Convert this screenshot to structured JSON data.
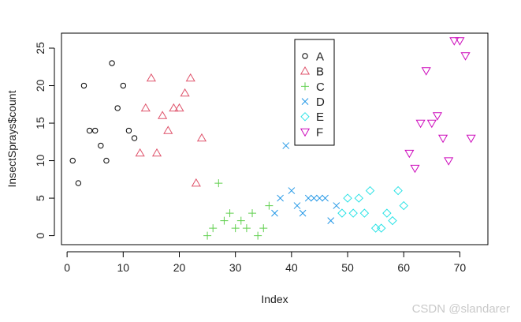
{
  "chart_data": {
    "type": "scatter",
    "xlabel": "Index",
    "ylabel": "InsectSprays$count",
    "xlim": [
      -1,
      75
    ],
    "ylim": [
      -1.2,
      27
    ],
    "xticks": [
      0,
      10,
      20,
      30,
      40,
      50,
      60,
      70
    ],
    "yticks": [
      0,
      5,
      10,
      15,
      20,
      25
    ],
    "legend_position": "top-center",
    "series": [
      {
        "name": "A",
        "color": "#000000",
        "marker": "circle",
        "x": [
          1,
          2,
          3,
          4,
          5,
          6,
          7,
          8,
          9,
          10,
          11,
          12
        ],
        "y": [
          10,
          7,
          20,
          14,
          14,
          12,
          10,
          23,
          17,
          20,
          14,
          13
        ]
      },
      {
        "name": "B",
        "color": "#DF536B",
        "marker": "triangle-up",
        "x": [
          13,
          14,
          15,
          16,
          17,
          18,
          19,
          20,
          21,
          22,
          23,
          24
        ],
        "y": [
          11,
          17,
          21,
          11,
          16,
          14,
          17,
          17,
          19,
          21,
          7,
          13
        ]
      },
      {
        "name": "C",
        "color": "#61D04F",
        "marker": "plus",
        "x": [
          25,
          26,
          27,
          28,
          29,
          30,
          31,
          32,
          33,
          34,
          35,
          36
        ],
        "y": [
          0,
          1,
          7,
          2,
          3,
          1,
          2,
          1,
          3,
          0,
          1,
          4
        ]
      },
      {
        "name": "D",
        "color": "#2297E6",
        "marker": "cross",
        "x": [
          37,
          38,
          39,
          40,
          41,
          42,
          43,
          44,
          45,
          46,
          47,
          48
        ],
        "y": [
          3,
          5,
          12,
          6,
          4,
          3,
          5,
          5,
          5,
          5,
          2,
          4
        ]
      },
      {
        "name": "E",
        "color": "#28E2E5",
        "marker": "diamond",
        "x": [
          49,
          50,
          51,
          52,
          53,
          54,
          55,
          56,
          57,
          58,
          59,
          60
        ],
        "y": [
          3,
          5,
          3,
          5,
          3,
          6,
          1,
          1,
          3,
          2,
          6,
          4
        ]
      },
      {
        "name": "F",
        "color": "#CD0BBC",
        "marker": "triangle-down",
        "x": [
          61,
          62,
          63,
          64,
          65,
          66,
          67,
          68,
          69,
          70,
          71,
          72
        ],
        "y": [
          11,
          9,
          15,
          22,
          15,
          16,
          13,
          10,
          26,
          26,
          24,
          13
        ]
      }
    ]
  },
  "watermark": "CSDN @slandarer"
}
